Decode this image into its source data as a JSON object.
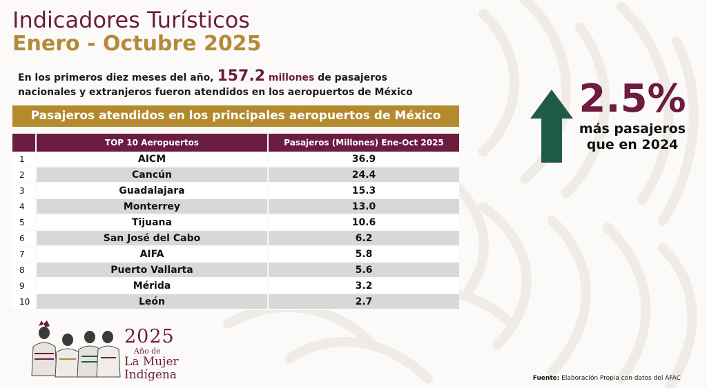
{
  "header": {
    "title_line1": "Indicadores Turísticos",
    "title_line2": "Enero - Octubre 2025"
  },
  "intro": {
    "text_before": "En los primeros diez meses del año, ",
    "highlight_number": "157.2",
    "highlight_unit": " millones",
    "text_after": " de pasajeros nacionales y extranjeros fueron atendidos en los aeropuertos de México"
  },
  "banner": "Pasajeros atendidos en los principales aeropuertos de México",
  "table": {
    "headers": [
      "",
      "TOP 10 Aeropuertos",
      "Pasajeros (Millones) Ene-Oct 2025"
    ],
    "rows": [
      {
        "rank": "1",
        "name": "AICM",
        "value": "36.9"
      },
      {
        "rank": "2",
        "name": "Cancún",
        "value": "24.4"
      },
      {
        "rank": "3",
        "name": "Guadalajara",
        "value": "15.3"
      },
      {
        "rank": "4",
        "name": "Monterrey",
        "value": "13.0"
      },
      {
        "rank": "5",
        "name": "Tijuana",
        "value": "10.6"
      },
      {
        "rank": "6",
        "name": "San José del Cabo",
        "value": "6.2"
      },
      {
        "rank": "7",
        "name": "AIFA",
        "value": "5.8"
      },
      {
        "rank": "8",
        "name": "Puerto Vallarta",
        "value": "5.6"
      },
      {
        "rank": "9",
        "name": "Mérida",
        "value": "3.2"
      },
      {
        "rank": "10",
        "name": "León",
        "value": "2.7"
      }
    ]
  },
  "stat": {
    "value": "2.5%",
    "label_line1": "más pasajeros",
    "label_line2": "que en 2024",
    "icon": "arrow-up-icon"
  },
  "logo": {
    "year": "2025",
    "subtitle": "Año de",
    "line1": "La Mujer",
    "line2": "Indígena"
  },
  "source": {
    "label": "Fuente:",
    "text": " Elaboración Propia con datos del AFAC"
  },
  "colors": {
    "burgundy": "#6b1c3f",
    "gold": "#b38a2e",
    "green": "#1f5b48",
    "row_gray": "#d8d8d8"
  }
}
